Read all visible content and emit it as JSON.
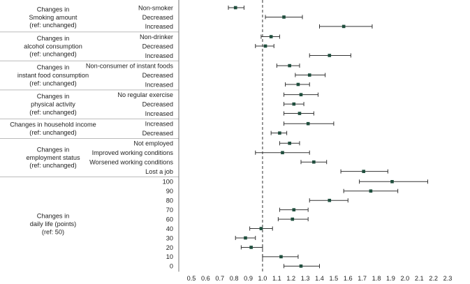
{
  "chart_data": {
    "type": "forest",
    "title": "",
    "xlabel": "",
    "reference_line": 1.0,
    "xlim": [
      0.5,
      2.3
    ],
    "xticks": [
      "0.5",
      "0.6",
      "0.7",
      "0.8",
      "0.9",
      "1.0",
      "1.1",
      "1.2",
      "1.3",
      "1.4",
      "1.5",
      "1.6",
      "1.7",
      "1.8",
      "1.9",
      "2.0",
      "2.1",
      "2.2",
      "2.3"
    ],
    "groups": [
      {
        "label_lines": [
          "Changes in",
          "Smoking amount",
          "(ref: unchanged)"
        ],
        "rows": [
          {
            "label": "Non-smoker",
            "or": 0.81,
            "lo": 0.76,
            "hi": 0.87
          },
          {
            "label": "Decreased",
            "or": 1.15,
            "lo": 1.02,
            "hi": 1.28
          },
          {
            "label": "Increased",
            "or": 1.57,
            "lo": 1.4,
            "hi": 1.77
          }
        ]
      },
      {
        "label_lines": [
          "Changes in",
          "alcohol consumption",
          "(ref: unchanged)"
        ],
        "rows": [
          {
            "label": "Non-drinker",
            "or": 1.06,
            "lo": 0.99,
            "hi": 1.12
          },
          {
            "label": "Decreased",
            "or": 1.02,
            "lo": 0.95,
            "hi": 1.08
          },
          {
            "label": "Increased",
            "or": 1.47,
            "lo": 1.33,
            "hi": 1.62
          }
        ]
      },
      {
        "label_lines": [
          "Changes in",
          "instant food consumption",
          "(ref: unchanged)"
        ],
        "rows": [
          {
            "label": "Non-consumer of instant foods",
            "or": 1.19,
            "lo": 1.1,
            "hi": 1.26
          },
          {
            "label": "Decreased",
            "or": 1.33,
            "lo": 1.23,
            "hi": 1.44
          },
          {
            "label": "Increased",
            "or": 1.25,
            "lo": 1.16,
            "hi": 1.33
          }
        ]
      },
      {
        "label_lines": [
          "Changes in",
          "physical activity",
          "(ref: unchanged)"
        ],
        "rows": [
          {
            "label": "No regular exercise",
            "or": 1.27,
            "lo": 1.15,
            "hi": 1.39
          },
          {
            "label": "Decreased",
            "or": 1.22,
            "lo": 1.15,
            "hi": 1.29
          },
          {
            "label": "Increased",
            "or": 1.26,
            "lo": 1.15,
            "hi": 1.36
          }
        ]
      },
      {
        "label_lines": [
          "Changes in household income",
          "(ref: unchanged)"
        ],
        "rows": [
          {
            "label": "Increased",
            "or": 1.32,
            "lo": 1.15,
            "hi": 1.5
          },
          {
            "label": "Decreased",
            "or": 1.12,
            "lo": 1.06,
            "hi": 1.17
          }
        ]
      },
      {
        "label_lines": [
          "Changes in",
          "employment status",
          "(ref: unchanged)"
        ],
        "rows": [
          {
            "label": "Not employed",
            "or": 1.19,
            "lo": 1.12,
            "hi": 1.26
          },
          {
            "label": "Improved working conditions",
            "or": 1.14,
            "lo": 0.95,
            "hi": 1.33
          },
          {
            "label": "Worsened working conditions",
            "or": 1.36,
            "lo": 1.27,
            "hi": 1.45
          },
          {
            "label": "Lost a job",
            "or": 1.71,
            "lo": 1.55,
            "hi": 1.88
          }
        ]
      },
      {
        "label_lines": [
          "Changes in",
          "daily life (points)",
          "(ref: 50)"
        ],
        "rows": [
          {
            "label": "100",
            "or": 1.91,
            "lo": 1.68,
            "hi": 2.16
          },
          {
            "label": "90",
            "or": 1.76,
            "lo": 1.57,
            "hi": 1.95
          },
          {
            "label": "80",
            "or": 1.47,
            "lo": 1.33,
            "hi": 1.6
          },
          {
            "label": "70",
            "or": 1.22,
            "lo": 1.12,
            "hi": 1.32
          },
          {
            "label": "60",
            "or": 1.21,
            "lo": 1.11,
            "hi": 1.32
          },
          {
            "label": "40",
            "or": 0.99,
            "lo": 0.91,
            "hi": 1.07
          },
          {
            "label": "30",
            "or": 0.88,
            "lo": 0.81,
            "hi": 0.95
          },
          {
            "label": "20",
            "or": 0.92,
            "lo": 0.85,
            "hi": 1.0
          },
          {
            "label": "10",
            "or": 1.13,
            "lo": 1.0,
            "hi": 1.25
          },
          {
            "label": "0",
            "or": 1.27,
            "lo": 1.15,
            "hi": 1.4
          }
        ]
      }
    ]
  },
  "colors": {
    "marker": "#1f4e3d",
    "ci_line": "#333333",
    "separator": "#bbbbbb",
    "reference_line": "#333333"
  }
}
